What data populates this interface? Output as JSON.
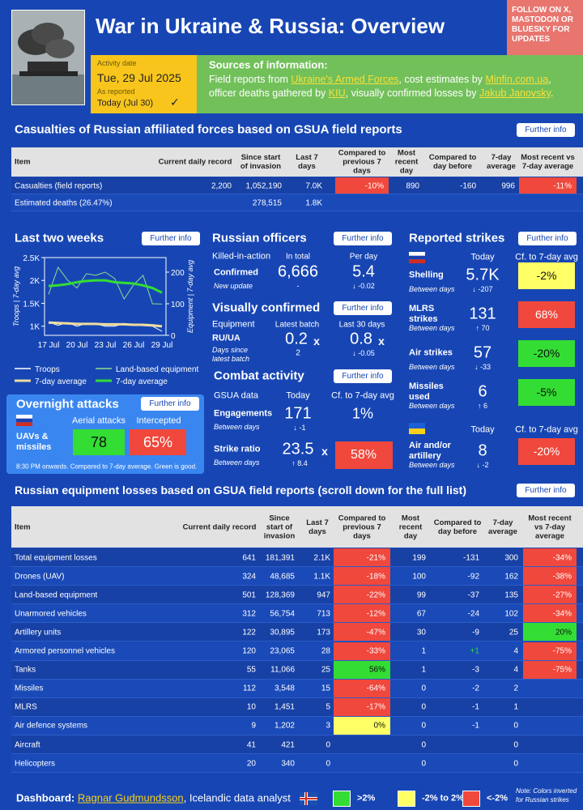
{
  "header": {
    "title": "War in Ukraine & Russia: Overview",
    "follow": "FOLLOW ON X, MASTODON OR BLUESKY FOR UPDATES"
  },
  "activity": {
    "label": "Activity date",
    "date": "Tue, 29 Jul 2025",
    "reported_label": "As reported",
    "reported": "Today (Jul 30)",
    "check": "✓"
  },
  "sources": {
    "title": "Sources of information:",
    "segments": [
      {
        "text": "Field reports from "
      },
      {
        "text": "Ukraine's Armed Forces",
        "link": true
      },
      {
        "text": ", cost estimates by "
      },
      {
        "text": "Minfin.com.ua",
        "link": true
      },
      {
        "text": ", officer deaths gathered by "
      },
      {
        "text": "KIU",
        "link": true
      },
      {
        "text": ", visually confirmed losses by "
      },
      {
        "text": "Jakub Janovsky",
        "link": true
      },
      {
        "text": "."
      }
    ]
  },
  "casualties": {
    "title": "Casualties of Russian affiliated forces based on GSUA field reports",
    "button": "Further info",
    "headers": [
      "Item",
      "Current daily record",
      "Since start of invasion",
      "Last 7 days",
      "Compared to previous 7 days",
      "Most recent day",
      "Compared to day before",
      "7-day average",
      "Most recent vs 7-day average"
    ],
    "rows": [
      [
        "Casualties (field reports)",
        "2,200",
        "1,052,190",
        "7.0K",
        {
          "text": "-10%",
          "color": "#f0483c"
        },
        "890",
        "-160",
        "996",
        {
          "text": "-11%",
          "color": "#f0483c"
        }
      ],
      [
        "Estimated deaths (26.47%)",
        null,
        "278,515",
        "1.8K",
        null,
        null,
        null,
        null,
        null
      ]
    ]
  },
  "last_two_weeks": {
    "title": "Last two weeks",
    "button": "Further info",
    "categories": [
      "17 Jul",
      null,
      null,
      "20 Jul",
      null,
      null,
      "23 Jul",
      null,
      null,
      "26 Jul",
      null,
      null,
      "29 Jul"
    ],
    "ylim": [
      800,
      2500
    ],
    "yticks": [
      {
        "value": 1000,
        "label": "1K"
      },
      {
        "value": 1500,
        "label": "1.5K"
      },
      {
        "value": 2000,
        "label": "2K"
      },
      {
        "value": 2500,
        "label": "2.5K"
      }
    ],
    "y2lim": [
      0,
      246
    ],
    "y2ticks": [
      0,
      100,
      200
    ],
    "ylabel": "Troops | 7-day avg",
    "y2label": "Equipment | 7-day avg",
    "series": [
      {
        "name": "Troops",
        "color": "#ffffff",
        "line": "thin",
        "values": [
          1090,
          1020,
          1080,
          1000,
          1060,
          1050,
          1000,
          1000,
          1060,
          1030,
          1010,
          1000,
          890
        ]
      },
      {
        "name": "7-day average",
        "color": "#f0dca0",
        "line": "thick",
        "values": [
          1080,
          1070,
          1060,
          1050,
          1050,
          1050,
          1040,
          1040,
          1040,
          1030,
          1030,
          1020,
          996
        ]
      },
      {
        "name": "Land-based equipment",
        "color": "#8fdc8f",
        "line": "thin",
        "axis": "y2",
        "values": [
          130,
          215,
          175,
          150,
          195,
          190,
          200,
          180,
          115,
          160,
          190,
          100,
          99
        ]
      },
      {
        "name": "7-day average",
        "color": "#33dd33",
        "line": "thick",
        "axis": "y2",
        "values": [
          156,
          158,
          162,
          168,
          172,
          174,
          174,
          168,
          166,
          164,
          158,
          150,
          135
        ]
      }
    ]
  },
  "officers": {
    "title": "Russian officers",
    "button": "Further info",
    "label": "Killed-in-action",
    "in_total": "In total",
    "per_day": "Per day",
    "confirmed": "Confirmed",
    "total": "6,666",
    "daily": "5.4",
    "note": "New update",
    "total_change": "-",
    "daily_change": "↓ -0.02"
  },
  "visual": {
    "title": "Visually confirmed",
    "button": "Further info",
    "label": "Equipment",
    "latest": "Latest batch",
    "last30": "Last 30 days",
    "ratio_label": "RU/UA",
    "latest_value": "0.2",
    "last30_value": "0.8",
    "times": "x",
    "days_label": "Days since latest batch",
    "days": "2",
    "last30_change": "↓ -0.05"
  },
  "combat": {
    "title": "Combat activity",
    "button": "Further info",
    "label": "GSUA data",
    "today": "Today",
    "cf": "Cf. to 7-day avg",
    "rows": [
      {
        "name": "Engagements",
        "sub": "Between days",
        "value": "171",
        "change": "↓ -1",
        "cf": "1%"
      },
      {
        "name": "Strike ratio",
        "sub": "Between days",
        "value": "23.5",
        "unit": "x",
        "change": "↑ 8.4",
        "cf": "58%",
        "color": "#f0483c"
      }
    ]
  },
  "strikes": {
    "title": "Reported strikes",
    "button": "Further info",
    "today": "Today",
    "cf": "Cf. to 7-day avg",
    "russian": [
      {
        "name": "Shelling",
        "sub": "Between days",
        "value": "5.7K",
        "change": "↓ -207",
        "cf": "-2%",
        "color": "#ffff66"
      },
      {
        "name": "MLRS strikes",
        "sub": "Between days",
        "value": "131",
        "change": "↑ 70",
        "cf": "68%",
        "color": "#f0483c"
      },
      {
        "name": "Air strikes",
        "sub": "Between days",
        "value": "57",
        "change": "↓ -33",
        "cf": "-20%",
        "color": "#33dd33"
      },
      {
        "name": "Missiles used",
        "sub": "Between days",
        "value": "6",
        "change": "↑ 6",
        "cf": "-5%",
        "color": "#33dd33"
      }
    ],
    "ukrainian_today": "Today",
    "ukrainian_cf": "Cf. to 7-day avg",
    "ukrainian": [
      {
        "name": "Air and/or artillery",
        "sub": "Between days",
        "value": "8",
        "change": "↓ -2",
        "cf": "-20%",
        "color": "#f0483c"
      }
    ]
  },
  "overnight": {
    "title": "Overnight attacks",
    "button": "Further info",
    "label": "UAVs & missiles",
    "attacks_label": "Aerial attacks",
    "intercepted_label": "Intercepted",
    "attacks": "78",
    "attacks_color": "#33dd33",
    "intercepted": "65%",
    "intercepted_color": "#f0483c",
    "note": "8:30 PM onwards. Compared to 7-day average. Green is good."
  },
  "equipment": {
    "title": "Russian equipment losses based on GSUA field reports (scroll down for the full list)",
    "button": "Further info",
    "headers": [
      "Item",
      "Current daily record",
      "Since start of invasion",
      "Last 7 days",
      "Compared to previous 7 days",
      "Most recent day",
      "Compared to day before",
      "7-day average",
      "Most recent vs 7-day average"
    ],
    "rows": [
      [
        "Total equipment losses",
        "641",
        "181,391",
        "2.1K",
        {
          "text": "-21%",
          "color": "#f0483c"
        },
        "199",
        "-131",
        "300",
        {
          "text": "-34%",
          "color": "#f0483c"
        }
      ],
      [
        "Drones (UAV)",
        "324",
        "48,685",
        "1.1K",
        {
          "text": "-18%",
          "color": "#f0483c"
        },
        "100",
        "-92",
        "162",
        {
          "text": "-38%",
          "color": "#f0483c"
        }
      ],
      [
        "Land-based equipment",
        "501",
        "128,369",
        "947",
        {
          "text": "-22%",
          "color": "#f0483c"
        },
        "99",
        "-37",
        "135",
        {
          "text": "-27%",
          "color": "#f0483c"
        }
      ],
      [
        "Unarmored vehicles",
        "312",
        "56,754",
        "713",
        {
          "text": "-12%",
          "color": "#f0483c"
        },
        "67",
        "-24",
        "102",
        {
          "text": "-34%",
          "color": "#f0483c"
        }
      ],
      [
        "Artillery units",
        "122",
        "30,895",
        "173",
        {
          "text": "-47%",
          "color": "#f0483c"
        },
        "30",
        "-9",
        "25",
        {
          "text": "20%",
          "color": "#33dd33"
        }
      ],
      [
        "Armored personnel vehicles",
        "120",
        "23,065",
        "28",
        {
          "text": "-33%",
          "color": "#f0483c"
        },
        "1",
        {
          "text": "+1",
          "text_color": "#33dd33"
        },
        "4",
        {
          "text": "-75%",
          "color": "#f0483c"
        }
      ],
      [
        "Tanks",
        "55",
        "11,066",
        "25",
        {
          "text": "56%",
          "color": "#33dd33"
        },
        "1",
        "-3",
        "4",
        {
          "text": "-75%",
          "color": "#f0483c"
        }
      ],
      [
        "Missiles",
        "112",
        "3,548",
        "15",
        {
          "text": "-64%",
          "color": "#f0483c"
        },
        "0",
        "-2",
        "2",
        null
      ],
      [
        "MLRS",
        "10",
        "1,451",
        "5",
        {
          "text": "-17%",
          "color": "#f0483c"
        },
        "0",
        "-1",
        "1",
        null
      ],
      [
        "Air defence systems",
        "9",
        "1,202",
        "3",
        {
          "text": "0%",
          "color": "#ffff66"
        },
        "0",
        "-1",
        "0",
        null
      ],
      [
        "Aircraft",
        "41",
        "421",
        "0",
        null,
        "0",
        null,
        "0",
        null
      ],
      [
        "Helicopters",
        "20",
        "340",
        "0",
        null,
        "0",
        null,
        "0",
        null
      ]
    ]
  },
  "footer": {
    "label": "Dashboard:",
    "author": "Ragnar Gudmundsson",
    "role": ", Icelandic data analyst",
    "legend": [
      {
        "label": ">2%",
        "color": "#33dd33"
      },
      {
        "label": "-2% to 2%",
        "color": "#ffff66"
      },
      {
        "label": "<-2%",
        "color": "#f0483c"
      }
    ],
    "note": "Note: Colors inverted for Russian strikes"
  }
}
